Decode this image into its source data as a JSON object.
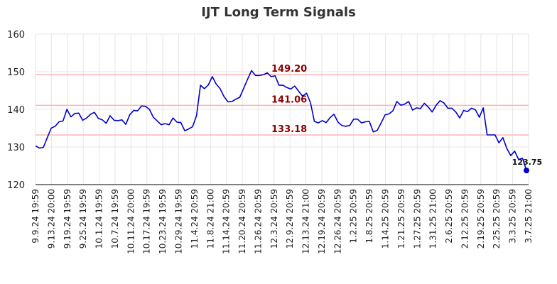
{
  "chart_data": {
    "type": "line",
    "title": "IJT Long Term Signals",
    "xlabel": "",
    "ylabel": "",
    "ylim": [
      120,
      160
    ],
    "yticks": [
      120,
      130,
      140,
      150,
      160
    ],
    "grid": true,
    "line_color": "#0000cc",
    "level_line_color": "#ffb3b3",
    "level_label_color": "#8b0000",
    "xtick_labels": [
      "9.9.24 19:59",
      "9.13.24 20:00",
      "9.19.24 19:59",
      "9.25.24 19:59",
      "10.1.24 19:59",
      "10.7.24 19:59",
      "10.11.24 20:00",
      "10.17.24 19:59",
      "10.23.24 19:59",
      "10.29.24 19:59",
      "11.4.24 20:59",
      "11.8.24 21:00",
      "11.14.24 20:59",
      "11.20.24 20:59",
      "11.26.24 20:59",
      "12.3.24 20:59",
      "12.9.24 20:59",
      "12.13.24 21:00",
      "12.19.24 20:59",
      "12.26.24 20:59",
      "1.2.25 20:59",
      "1.8.25 20:59",
      "1.14.25 20:59",
      "1.21.25 20:59",
      "1.27.25 20:59",
      "1.31.25 21:00",
      "2.6.25 20:59",
      "2.12.25 20:59",
      "2.19.25 20:59",
      "2.25.25 20:59",
      "3.3.25 20:59",
      "3.7.25 21:00"
    ],
    "levels": [
      {
        "value": 149.2,
        "label": "149.20"
      },
      {
        "value": 141.06,
        "label": "141.06"
      },
      {
        "value": 133.18,
        "label": "133.18"
      }
    ],
    "last_value_label": "123.75",
    "series": [
      {
        "values": [
          130.3,
          129.7,
          129.9,
          132.5,
          135.0,
          135.5,
          136.7,
          136.9,
          140.0,
          138.0,
          138.9,
          139.0,
          137.1,
          137.7,
          138.7,
          139.2,
          137.6,
          137.2,
          136.3,
          138.3,
          137.1,
          137.0,
          137.2,
          136.0,
          138.6,
          139.7,
          139.6,
          140.9,
          140.8,
          140.0,
          137.9,
          136.9,
          135.9,
          136.2,
          135.9,
          137.7,
          136.6,
          136.5,
          134.3,
          134.8,
          135.4,
          138.3,
          146.4,
          145.5,
          146.5,
          148.7,
          146.7,
          145.5,
          143.4,
          142.0,
          142.1,
          142.7,
          143.2,
          145.6,
          148.0,
          150.3,
          149.0,
          149.0,
          149.2,
          149.7,
          148.7,
          148.9,
          146.4,
          146.4,
          145.8,
          145.4,
          146.2,
          144.8,
          143.5,
          144.3,
          141.8,
          136.8,
          136.4,
          137.0,
          136.5,
          137.8,
          138.7,
          136.6,
          135.7,
          135.5,
          135.7,
          137.4,
          137.4,
          136.4,
          136.7,
          136.8,
          134.0,
          134.4,
          136.4,
          138.5,
          138.8,
          139.6,
          142.1,
          141.1,
          141.4,
          142.1,
          139.8,
          140.4,
          140.2,
          141.6,
          140.6,
          139.3,
          141.1,
          142.3,
          141.7,
          140.3,
          140.3,
          139.3,
          137.7,
          139.7,
          139.4,
          140.3,
          139.9,
          137.9,
          140.4,
          133.2,
          133.2,
          133.2,
          131.1,
          132.5,
          129.6,
          127.7,
          128.9,
          126.7,
          127.0,
          123.75
        ]
      }
    ]
  }
}
